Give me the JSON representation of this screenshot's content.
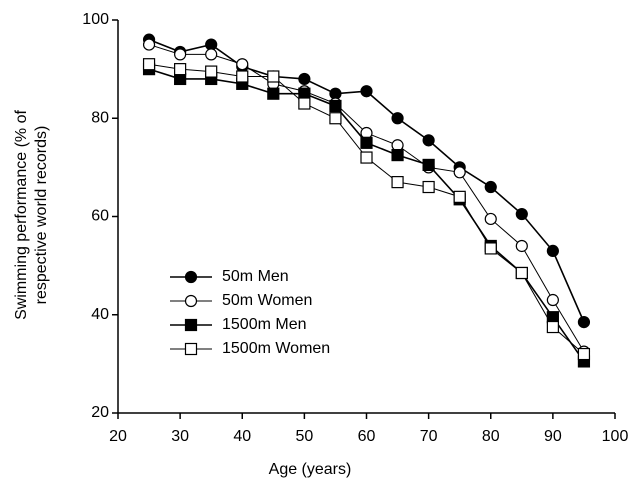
{
  "chart_data": {
    "type": "line",
    "x_label": "Age (years)",
    "y_label": [
      "Swimming performance (% of",
      "respective world records)"
    ],
    "x": [
      25,
      30,
      35,
      40,
      45,
      50,
      55,
      60,
      65,
      70,
      75,
      80,
      85,
      90,
      95
    ],
    "xlim": [
      20,
      100
    ],
    "xticks": [
      20,
      30,
      40,
      50,
      60,
      70,
      80,
      90,
      100
    ],
    "ylim": [
      20,
      100
    ],
    "yticks": [
      20,
      40,
      60,
      80,
      100
    ],
    "legend": "left",
    "series": [
      {
        "name": "50m Men",
        "color": "#000000",
        "marker": "circle",
        "filled": true,
        "values": [
          96,
          93.5,
          95,
          90.5,
          88.5,
          88,
          85,
          85.5,
          80,
          75.5,
          70,
          66,
          60.5,
          53,
          38.5
        ]
      },
      {
        "name": "50m Women",
        "color": "#000000",
        "marker": "circle",
        "filled": false,
        "values": [
          95,
          93,
          93,
          91,
          87,
          85.5,
          83,
          77,
          74.5,
          70,
          69,
          59.5,
          54,
          43,
          32.5
        ]
      },
      {
        "name": "1500m Men",
        "color": "#000000",
        "marker": "square",
        "filled": true,
        "values": [
          90,
          88,
          88,
          87,
          85,
          85,
          82.5,
          75,
          72.5,
          70.5,
          63.5,
          54,
          48.5,
          39.5,
          30.5
        ]
      },
      {
        "name": "1500m Women",
        "color": "#000000",
        "marker": "square",
        "filled": false,
        "values": [
          91,
          90,
          89.5,
          88.5,
          88.5,
          83,
          80,
          72,
          67,
          66,
          64,
          53.5,
          48.5,
          37.5,
          32
        ]
      }
    ]
  }
}
